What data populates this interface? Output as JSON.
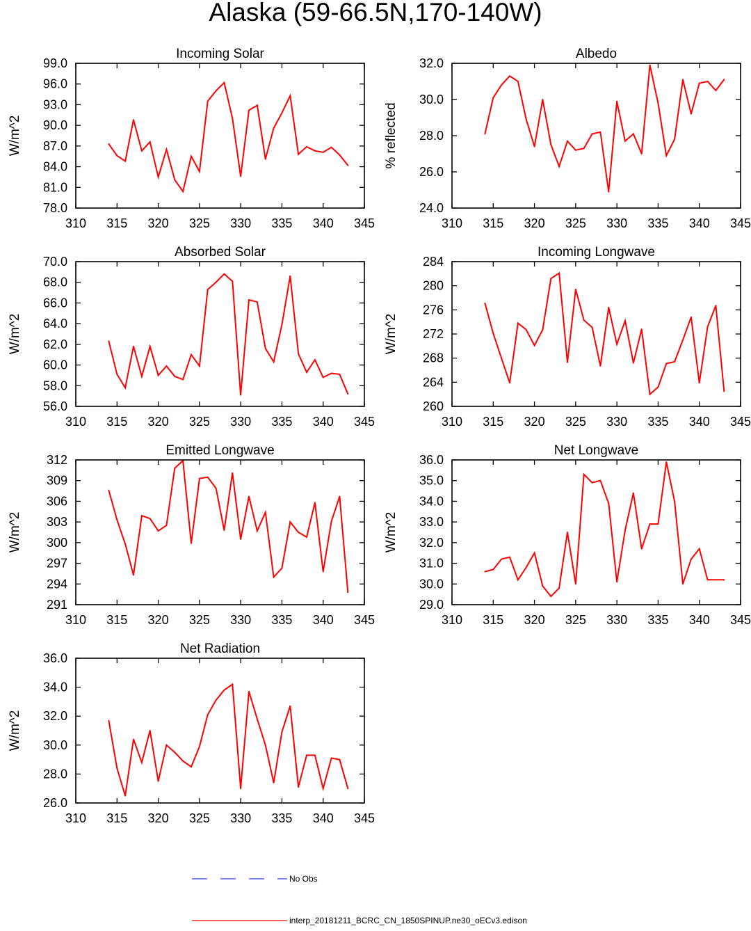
{
  "figure": {
    "title": "Alaska (59-66.5N,170-140W)"
  },
  "legend": [
    {
      "label": "No Obs",
      "color": "#3333ff",
      "style": "dashed"
    },
    {
      "label": "interp_20181211_BCRC_CN_1850SPINUP.ne30_oECv3.edison",
      "color": "#ff0000",
      "style": "solid"
    }
  ],
  "chart_data": [
    {
      "type": "line",
      "title": "Incoming Solar",
      "xlabel": "",
      "ylabel": "W/m^2",
      "xlim": [
        310,
        345
      ],
      "ylim": [
        78,
        99
      ],
      "xticks": [
        310,
        315,
        320,
        325,
        330,
        335,
        340,
        345
      ],
      "yticks": [
        78,
        81,
        84,
        87,
        90,
        93,
        96,
        99
      ],
      "x": [
        314,
        315,
        316,
        317,
        318,
        319,
        320,
        321,
        322,
        323,
        324,
        325,
        326,
        327,
        328,
        329,
        330,
        331,
        332,
        333,
        334,
        335,
        336,
        337,
        338,
        339,
        340,
        341,
        342,
        343
      ],
      "series": [
        {
          "color": "#ff0000",
          "values": [
            87.3,
            85.6,
            84.8,
            90.8,
            86.3,
            87.6,
            82.5,
            86.5,
            82.1,
            80.4,
            85.5,
            83.3,
            93.5,
            95.0,
            96.2,
            91.0,
            82.6,
            92.2,
            92.9,
            85.1,
            89.6,
            91.8,
            94.3,
            85.8,
            86.9,
            86.3,
            86.1,
            86.8,
            85.7,
            84.2
          ]
        }
      ]
    },
    {
      "type": "line",
      "title": "Albedo",
      "xlabel": "",
      "ylabel": "% reflected",
      "xlim": [
        310,
        345
      ],
      "ylim": [
        24,
        32
      ],
      "xticks": [
        310,
        315,
        320,
        325,
        330,
        335,
        340,
        345
      ],
      "yticks": [
        24,
        26,
        28,
        30,
        32
      ],
      "x": [
        314,
        315,
        316,
        317,
        318,
        319,
        320,
        321,
        322,
        323,
        324,
        325,
        326,
        327,
        328,
        329,
        330,
        331,
        332,
        333,
        334,
        335,
        336,
        337,
        338,
        339,
        340,
        341,
        342,
        343
      ],
      "series": [
        {
          "color": "#ff0000",
          "values": [
            28.1,
            30.1,
            30.8,
            31.3,
            31.0,
            28.9,
            27.4,
            30.0,
            27.5,
            26.3,
            27.7,
            27.2,
            27.3,
            28.1,
            28.2,
            24.9,
            29.9,
            27.7,
            28.1,
            27.0,
            31.9,
            29.8,
            26.9,
            27.8,
            31.1,
            29.2,
            30.9,
            31.0,
            30.5,
            31.1
          ]
        }
      ]
    },
    {
      "type": "line",
      "title": "Absorbed Solar",
      "xlabel": "",
      "ylabel": "W/m^2",
      "xlim": [
        310,
        345
      ],
      "ylim": [
        56,
        70
      ],
      "xticks": [
        310,
        315,
        320,
        325,
        330,
        335,
        340,
        345
      ],
      "yticks": [
        56,
        58,
        60,
        62,
        64,
        66,
        68,
        70
      ],
      "x": [
        314,
        315,
        316,
        317,
        318,
        319,
        320,
        321,
        322,
        323,
        324,
        325,
        326,
        327,
        328,
        329,
        330,
        331,
        332,
        333,
        334,
        335,
        336,
        337,
        338,
        339,
        340,
        341,
        342,
        343
      ],
      "series": [
        {
          "color": "#ff0000",
          "values": [
            62.3,
            59.1,
            57.8,
            61.8,
            58.9,
            61.8,
            59.0,
            59.9,
            58.9,
            58.6,
            61.0,
            59.9,
            67.3,
            68.0,
            68.8,
            68.1,
            57.1,
            66.3,
            66.1,
            61.6,
            60.3,
            63.9,
            68.6,
            61.1,
            59.3,
            60.5,
            58.8,
            59.2,
            59.1,
            57.2
          ]
        }
      ]
    },
    {
      "type": "line",
      "title": "Incoming Longwave",
      "xlabel": "",
      "ylabel": "W/m^2",
      "xlim": [
        310,
        345
      ],
      "ylim": [
        260,
        284
      ],
      "xticks": [
        310,
        315,
        320,
        325,
        330,
        335,
        340,
        345
      ],
      "yticks": [
        260,
        264,
        268,
        272,
        276,
        280,
        284
      ],
      "x": [
        314,
        315,
        316,
        317,
        318,
        319,
        320,
        321,
        322,
        323,
        324,
        325,
        326,
        327,
        328,
        329,
        330,
        331,
        332,
        333,
        334,
        335,
        336,
        337,
        338,
        339,
        340,
        341,
        342,
        343
      ],
      "series": [
        {
          "color": "#ff0000",
          "values": [
            277.1,
            272.1,
            268.0,
            263.9,
            273.8,
            272.7,
            270.1,
            272.7,
            281.2,
            282.1,
            267.3,
            279.4,
            274.3,
            273.1,
            266.7,
            276.4,
            270.3,
            274.2,
            267.2,
            272.8,
            262.0,
            263.2,
            267.1,
            267.4,
            271.0,
            274.8,
            263.9,
            273.2,
            276.7,
            262.5
          ]
        }
      ]
    },
    {
      "type": "line",
      "title": "Emitted Longwave",
      "xlabel": "",
      "ylabel": "W/m^2",
      "xlim": [
        310,
        345
      ],
      "ylim": [
        291,
        312
      ],
      "xticks": [
        310,
        315,
        320,
        325,
        330,
        335,
        340,
        345
      ],
      "yticks": [
        291,
        294,
        297,
        300,
        303,
        306,
        309,
        312
      ],
      "x": [
        314,
        315,
        316,
        317,
        318,
        319,
        320,
        321,
        322,
        323,
        324,
        325,
        326,
        327,
        328,
        329,
        330,
        331,
        332,
        333,
        334,
        335,
        336,
        337,
        338,
        339,
        340,
        341,
        342,
        343
      ],
      "series": [
        {
          "color": "#ff0000",
          "values": [
            307.6,
            303.3,
            299.8,
            295.3,
            303.9,
            303.5,
            301.7,
            302.5,
            310.8,
            311.9,
            299.9,
            309.3,
            309.5,
            307.9,
            301.8,
            310.1,
            300.5,
            306.7,
            301.7,
            304.4,
            295.0,
            296.3,
            303.0,
            301.5,
            300.8,
            305.8,
            295.8,
            303.1,
            306.7,
            292.8
          ]
        }
      ]
    },
    {
      "type": "line",
      "title": "Net Longwave",
      "xlabel": "",
      "ylabel": "W/m^2",
      "xlim": [
        310,
        345
      ],
      "ylim": [
        29,
        36
      ],
      "xticks": [
        310,
        315,
        320,
        325,
        330,
        335,
        340,
        345
      ],
      "yticks": [
        29,
        30,
        31,
        32,
        33,
        34,
        35,
        36
      ],
      "x": [
        314,
        315,
        316,
        317,
        318,
        319,
        320,
        321,
        322,
        323,
        324,
        325,
        326,
        327,
        328,
        329,
        330,
        331,
        332,
        333,
        334,
        335,
        336,
        337,
        338,
        339,
        340,
        341,
        342,
        343
      ],
      "series": [
        {
          "color": "#ff0000",
          "values": [
            30.6,
            30.7,
            31.2,
            31.3,
            30.2,
            30.8,
            31.5,
            29.9,
            29.4,
            29.8,
            32.5,
            30.0,
            35.3,
            34.9,
            35.0,
            33.9,
            30.1,
            32.6,
            34.4,
            31.7,
            32.9,
            32.9,
            35.9,
            34.0,
            30.0,
            31.2,
            31.7,
            30.2,
            30.2,
            30.2
          ]
        }
      ]
    },
    {
      "type": "line",
      "title": "Net Radiation",
      "xlabel": "",
      "ylabel": "W/m^2",
      "xlim": [
        310,
        345
      ],
      "ylim": [
        26,
        36
      ],
      "xticks": [
        310,
        315,
        320,
        325,
        330,
        335,
        340,
        345
      ],
      "yticks": [
        26,
        28,
        30,
        32,
        34,
        36
      ],
      "x": [
        314,
        315,
        316,
        317,
        318,
        319,
        320,
        321,
        322,
        323,
        324,
        325,
        326,
        327,
        328,
        329,
        330,
        331,
        332,
        333,
        334,
        335,
        336,
        337,
        338,
        339,
        340,
        341,
        342,
        343
      ],
      "series": [
        {
          "color": "#ff0000",
          "values": [
            31.7,
            28.4,
            26.5,
            30.4,
            28.8,
            31.0,
            27.5,
            30.0,
            29.5,
            28.9,
            28.5,
            29.9,
            32.1,
            33.1,
            33.8,
            34.2,
            27.0,
            33.7,
            31.8,
            30.0,
            27.4,
            30.9,
            32.7,
            27.1,
            29.3,
            29.3,
            27.0,
            29.1,
            29.0,
            27.0
          ]
        }
      ]
    }
  ]
}
